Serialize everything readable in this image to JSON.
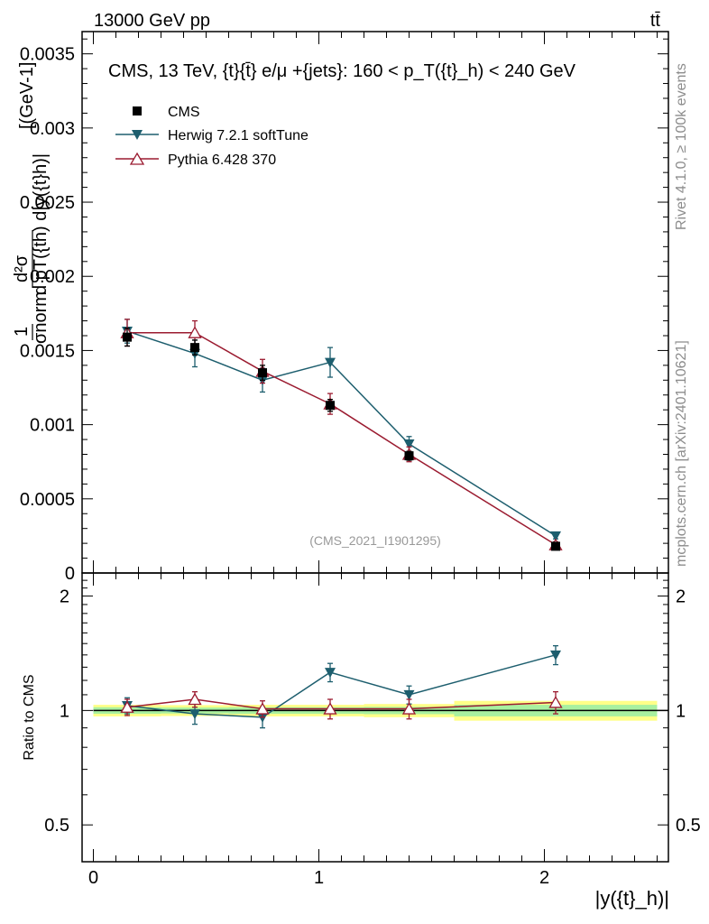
{
  "header": {
    "energy_label": "13000 GeV pp",
    "process_label": "tt̄"
  },
  "side_labels": {
    "rivet": "Rivet 4.1.0, ≥ 100k events",
    "mcplots": "mcplots.cern.ch [arXiv:2401.10621]"
  },
  "chart_data": [
    {
      "type": "line",
      "panel": "main",
      "title": "CMS, 13 TeV, {t}{t̄} e/μ +{jets}: 160 <  p_T({t}_h) < 240 GeV",
      "analysis_label": "(CMS_2021_I1901295)",
      "ylabel": "1/σ_norm  d²σ / d p_T({t}_h) d|y({t}_h)|  [(GeV)⁻¹]",
      "ylabel_parts": {
        "one": "1",
        "sigma_norm": "σnorm",
        "d2sigma": "d²σ",
        "denom": "d pT({th) d|y({t}h)|",
        "units": "[(GeV-1]"
      },
      "xlim": [
        -0.05,
        2.55
      ],
      "ylim": [
        0,
        0.00365
      ],
      "y_ticks": [
        {
          "value": 0,
          "label": "0"
        },
        {
          "value": 0.0005,
          "label": "0.0005"
        },
        {
          "value": 0.001,
          "label": "0.001"
        },
        {
          "value": 0.0015,
          "label": "0.0015"
        },
        {
          "value": 0.002,
          "label": "0.002"
        },
        {
          "value": 0.0025,
          "label": "0.0025"
        },
        {
          "value": 0.003,
          "label": "0.003"
        },
        {
          "value": 0.0035,
          "label": "0.0035"
        }
      ],
      "series": [
        {
          "name": "CMS",
          "color": "#000000",
          "marker": "square",
          "x": [
            0.15,
            0.45,
            0.75,
            1.05,
            1.4,
            2.05
          ],
          "y": [
            0.00159,
            0.00152,
            0.00135,
            0.00113,
            0.00079,
            0.00018
          ],
          "yerr": [
            6e-05,
            5e-05,
            5e-05,
            4e-05,
            3e-05,
            1e-05
          ]
        },
        {
          "name": "Herwig 7.2.1 softTune",
          "color": "#1d5e6e",
          "marker": "triangle-down",
          "x": [
            0.15,
            0.45,
            0.75,
            1.05,
            1.4,
            2.05
          ],
          "y": [
            0.00163,
            0.00148,
            0.0013,
            0.00142,
            0.00087,
            0.00025
          ],
          "yerr": [
            8e-05,
            9e-05,
            8e-05,
            0.0001,
            5e-05,
            2e-05
          ]
        },
        {
          "name": "Pythia 6.428 370",
          "color": "#9b1b30",
          "marker": "triangle-up-open",
          "x": [
            0.15,
            0.45,
            0.75,
            1.05,
            1.4,
            2.05
          ],
          "y": [
            0.00162,
            0.00162,
            0.00136,
            0.00114,
            0.0008,
            0.00019
          ],
          "yerr": [
            9e-05,
            8e-05,
            8e-05,
            7e-05,
            5e-05,
            2e-05
          ]
        }
      ]
    },
    {
      "type": "line",
      "panel": "ratio",
      "ylabel": "Ratio to CMS",
      "xlabel": "|y({t}_h)|",
      "xlim": [
        -0.05,
        2.55
      ],
      "ylim": [
        0.4,
        2.3
      ],
      "x_ticks": [
        {
          "value": 0,
          "label": "0"
        },
        {
          "value": 1,
          "label": "1"
        },
        {
          "value": 2,
          "label": "2"
        }
      ],
      "y_ticks": [
        {
          "value": 0.5,
          "label": "0.5"
        },
        {
          "value": 1,
          "label": "1"
        },
        {
          "value": 2,
          "label": "2"
        }
      ],
      "band": {
        "x_edges": [
          0,
          0.3,
          0.6,
          0.9,
          1.2,
          1.6,
          2.5
        ],
        "inner": [
          0.02,
          0.018,
          0.02,
          0.02,
          0.022,
          0.035
        ],
        "outer": [
          0.035,
          0.033,
          0.035,
          0.035,
          0.04,
          0.06
        ]
      },
      "series": [
        {
          "name": "Herwig 7.2.1 softTune",
          "color": "#1d5e6e",
          "marker": "triangle-down",
          "x": [
            0.15,
            0.45,
            0.75,
            1.05,
            1.4,
            2.05
          ],
          "y": [
            1.03,
            0.98,
            0.96,
            1.26,
            1.1,
            1.4
          ],
          "yerr": [
            0.05,
            0.06,
            0.06,
            0.07,
            0.06,
            0.08
          ]
        },
        {
          "name": "Pythia 6.428 370",
          "color": "#9b1b30",
          "marker": "triangle-up-open",
          "x": [
            0.15,
            0.45,
            0.75,
            1.05,
            1.4,
            2.05
          ],
          "y": [
            1.02,
            1.07,
            1.01,
            1.01,
            1.01,
            1.05
          ],
          "yerr": [
            0.05,
            0.05,
            0.05,
            0.06,
            0.06,
            0.07
          ]
        }
      ]
    }
  ]
}
